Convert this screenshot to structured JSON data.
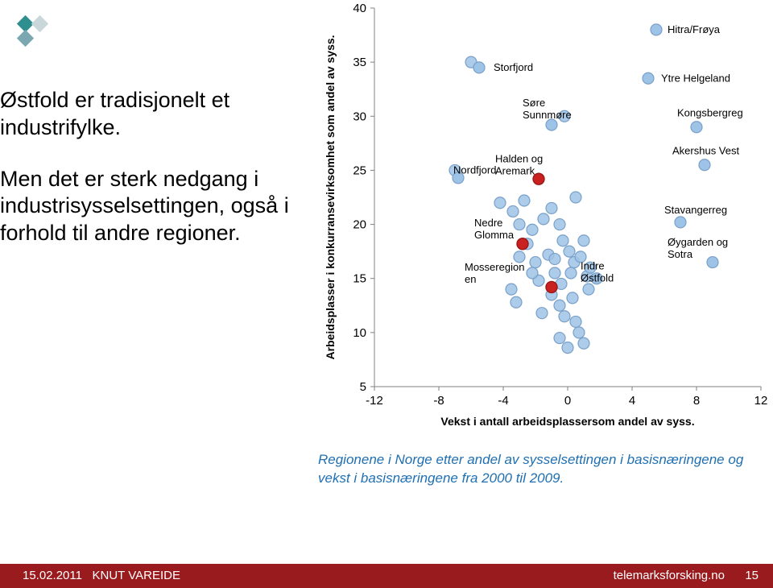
{
  "logo_colors": {
    "a": "#2f8f8f",
    "b": "#c9d7db",
    "c": "#7aa7b0"
  },
  "intro": {
    "p1": "Østfold er tradisjonelt et industrifylke.",
    "p2": "Men det er sterk nedgang i industrisysselsettingen, også i forhold til andre regioner."
  },
  "chart": {
    "type": "scatter",
    "xlabel": "Vekst i antall arbeidsplassersom andel av syss.",
    "ylabel": "Arbeidsplasser i konkurransevirksomhet som andel av syss.",
    "xlabel_fontsize": 14,
    "ylabel_fontsize": 14,
    "xlabel_weight": "bold",
    "ylabel_weight": "bold",
    "xlim": [
      -12,
      12
    ],
    "ylim": [
      5,
      40
    ],
    "xticks": [
      -12,
      -8,
      -4,
      0,
      4,
      8,
      12
    ],
    "yticks": [
      5,
      10,
      15,
      20,
      25,
      30,
      35,
      40
    ],
    "tick_fontsize": 15,
    "plot_bg": "#ffffff",
    "axis_color": "#808080",
    "marker_radius": 7,
    "marker_stroke": "#7aa0c8",
    "marker_stroke_width": 1.2,
    "highlight_fill": "#c92020",
    "highlight_stroke": "#9a1717",
    "normal_fill": "#9dc3e6",
    "label_color": "#000000",
    "label_fontsize": 13,
    "background_points": [
      {
        "x": -6.0,
        "y": 35.0
      },
      {
        "x": -0.2,
        "y": 30.0
      },
      {
        "x": -7.0,
        "y": 25.0
      },
      {
        "x": -4.2,
        "y": 22.0
      },
      {
        "x": -3.4,
        "y": 21.2
      },
      {
        "x": -2.7,
        "y": 22.2
      },
      {
        "x": -3.0,
        "y": 20.0
      },
      {
        "x": -2.2,
        "y": 19.5
      },
      {
        "x": -1.5,
        "y": 20.5
      },
      {
        "x": -1.0,
        "y": 21.5
      },
      {
        "x": -0.5,
        "y": 20.0
      },
      {
        "x": -0.3,
        "y": 18.5
      },
      {
        "x": -1.2,
        "y": 17.2
      },
      {
        "x": -2.0,
        "y": 16.5
      },
      {
        "x": -2.5,
        "y": 18.2
      },
      {
        "x": -1.8,
        "y": 14.8
      },
      {
        "x": -0.8,
        "y": 15.5
      },
      {
        "x": -0.4,
        "y": 14.5
      },
      {
        "x": 0.2,
        "y": 15.5
      },
      {
        "x": 0.4,
        "y": 16.5
      },
      {
        "x": 0.8,
        "y": 17.0
      },
      {
        "x": 1.2,
        "y": 15.2
      },
      {
        "x": 1.3,
        "y": 14.0
      },
      {
        "x": 0.3,
        "y": 13.2
      },
      {
        "x": -0.5,
        "y": 12.5
      },
      {
        "x": -0.2,
        "y": 11.5
      },
      {
        "x": 0.5,
        "y": 11.0
      },
      {
        "x": 0.7,
        "y": 10.0
      },
      {
        "x": -0.5,
        "y": 9.5
      },
      {
        "x": 0.0,
        "y": 8.6
      },
      {
        "x": 1.0,
        "y": 9.0
      },
      {
        "x": -3.5,
        "y": 14.0
      },
      {
        "x": -3.2,
        "y": 12.8
      },
      {
        "x": 0.5,
        "y": 22.5
      },
      {
        "x": 1.0,
        "y": 18.5
      },
      {
        "x": 1.4,
        "y": 16.0
      },
      {
        "x": -1.0,
        "y": 13.5
      },
      {
        "x": -1.6,
        "y": 11.8
      },
      {
        "x": 0.1,
        "y": 17.5
      },
      {
        "x": -2.2,
        "y": 15.5
      },
      {
        "x": -0.8,
        "y": 16.8
      },
      {
        "x": -3.0,
        "y": 17.0
      }
    ],
    "labeled_points": [
      {
        "x": 5.5,
        "y": 38.0,
        "label": "Hitra/Frøya",
        "lx": 6.2,
        "ly": 38.0,
        "anchor": "start"
      },
      {
        "x": 5.0,
        "y": 33.5,
        "label": "Ytre Helgeland",
        "lx": 5.8,
        "ly": 33.5,
        "anchor": "start"
      },
      {
        "x": -5.5,
        "y": 34.5,
        "label": "Storfjord",
        "lx": -4.6,
        "ly": 34.5,
        "anchor": "start"
      },
      {
        "x": 8.0,
        "y": 29.0,
        "label": "Kongsbergreg",
        "lx": 6.8,
        "ly": 30.3,
        "anchor": "start"
      },
      {
        "x": -1.0,
        "y": 29.2,
        "label": "Søre Sunnmøre",
        "lx": -2.8,
        "ly": 30.7,
        "anchor": "start",
        "lines": 2
      },
      {
        "x": 8.5,
        "y": 25.5,
        "label": "Akershus Vest",
        "lx": 6.5,
        "ly": 26.8,
        "anchor": "start"
      },
      {
        "x": -6.8,
        "y": 24.3,
        "label": "Nordfjord",
        "lx": -7.1,
        "ly": 25.0,
        "anchor": "start"
      },
      {
        "x": 7.0,
        "y": 20.2,
        "label": "Stavangerreg",
        "lx": 6.0,
        "ly": 21.3,
        "anchor": "start"
      },
      {
        "x": 9.0,
        "y": 16.5,
        "label": "Øygarden og Sotra",
        "lx": 6.2,
        "ly": 17.8,
        "anchor": "start",
        "lines": 2
      },
      {
        "x": 1.8,
        "y": 15.0,
        "label": "Indre Østfold",
        "lx": 0.8,
        "ly": 15.6,
        "anchor": "start",
        "lines": 2
      }
    ],
    "highlighted_points": [
      {
        "x": -1.8,
        "y": 24.2,
        "label": "Halden og Aremark",
        "lx": -4.5,
        "ly": 25.5,
        "anchor": "start",
        "lines": 2
      },
      {
        "x": -2.8,
        "y": 18.2,
        "label": "Nedre Glomma",
        "lx": -5.8,
        "ly": 19.6,
        "anchor": "start",
        "lines": 2
      },
      {
        "x": -1.0,
        "y": 14.2,
        "label": "Mosseregion en",
        "lx": -6.4,
        "ly": 15.5,
        "anchor": "start",
        "lines": 2
      }
    ]
  },
  "caption": "Regionene i Norge etter andel av sysselsettingen i basisnæringene og vekst i basisnæringene fra 2000 til 2009.",
  "footer": {
    "date": "15.02.2011",
    "author": "KNUT VAREIDE",
    "site": "telemarksforsking.no",
    "page": "15"
  }
}
